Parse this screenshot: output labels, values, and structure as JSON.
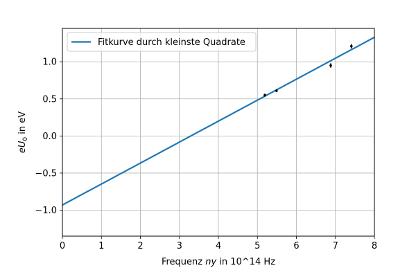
{
  "chart_data": {
    "type": "line",
    "xlabel_prefix": "Frequenz ",
    "xlabel_italic": "ny",
    "xlabel_suffix": " in 10^14 Hz",
    "ylabel_italic": "eU",
    "ylabel_sub": "0",
    "ylabel_suffix": " in eV",
    "xlim": [
      0,
      8
    ],
    "ylim": [
      -1.35,
      1.45
    ],
    "grid": true,
    "legend_position": "upper-left",
    "x_ticks": [
      0,
      1,
      2,
      3,
      4,
      5,
      6,
      7,
      8
    ],
    "x_tick_labels": [
      "0",
      "1",
      "2",
      "3",
      "4",
      "5",
      "6",
      "7",
      "8"
    ],
    "y_ticks": [
      -1.0,
      -0.5,
      0.0,
      0.5,
      1.0
    ],
    "y_tick_labels": [
      "−1.0",
      "−0.5",
      "0.0",
      "0.5",
      "1.0"
    ],
    "fit": {
      "name": "Fitkurve durch kleinste Quadrate",
      "color": "#1f77b4",
      "x": [
        0,
        8
      ],
      "y": [
        -0.93,
        1.33
      ]
    },
    "measurements": {
      "color": "#000000",
      "points": [
        {
          "x": 5.19,
          "y": 0.55,
          "err": 0.02
        },
        {
          "x": 5.49,
          "y": 0.61,
          "err": 0.02
        },
        {
          "x": 6.88,
          "y": 0.95,
          "err": 0.03
        },
        {
          "x": 7.41,
          "y": 1.21,
          "err": 0.03
        }
      ]
    }
  }
}
